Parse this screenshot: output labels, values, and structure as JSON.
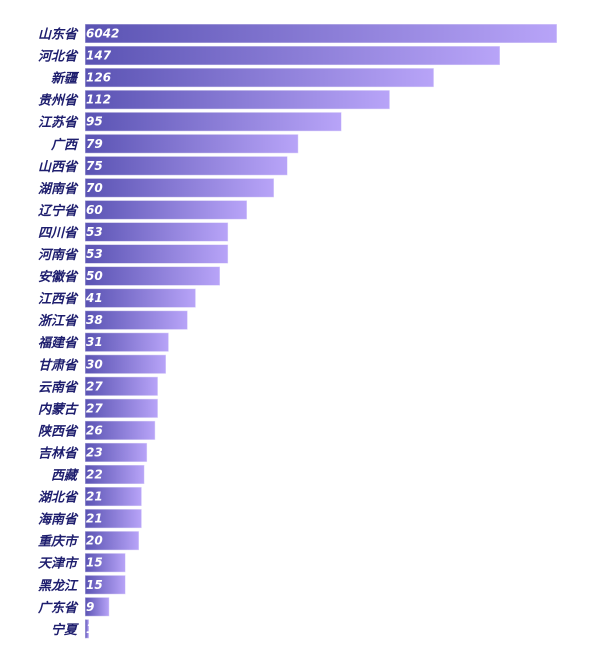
{
  "chart_data": {
    "type": "bar",
    "orientation": "horizontal",
    "title": "",
    "xlabel": "",
    "ylabel": "",
    "categories": [
      "山东省",
      "河北省",
      "新疆",
      "贵州省",
      "江苏省",
      "广西",
      "山西省",
      "湖南省",
      "辽宁省",
      "四川省",
      "河南省",
      "安徽省",
      "江西省",
      "浙江省",
      "福建省",
      "甘肃省",
      "云南省",
      "内蒙古",
      "陕西省",
      "吉林省",
      "西藏",
      "湖北省",
      "海南省",
      "重庆市",
      "天津市",
      "黑龙江",
      "广东省",
      "宁夏"
    ],
    "values": [
      6042,
      147,
      126,
      112,
      95,
      79,
      75,
      70,
      60,
      53,
      53,
      50,
      41,
      38,
      31,
      30,
      27,
      27,
      26,
      23,
      22,
      21,
      21,
      20,
      15,
      15,
      9,
      1
    ],
    "grid": false,
    "legend": "none",
    "colors": {
      "bar_start": "#5a53b3",
      "bar_end": "#b8a4f8",
      "label": "#1e1e6e",
      "value_text": "#ffffff"
    }
  }
}
